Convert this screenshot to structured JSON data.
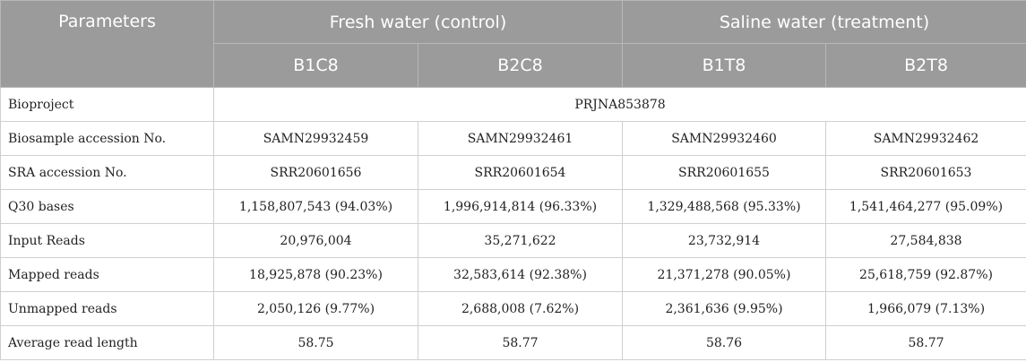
{
  "header": {
    "parameters": "Parameters",
    "group_fresh": "Fresh water (control)",
    "group_saline": "Saline water (treatment)",
    "samples": [
      "B1C8",
      "B2C8",
      "B1T8",
      "B2T8"
    ]
  },
  "bioproject": {
    "label": "Bioproject",
    "value": "PRJNA853878"
  },
  "rows": [
    {
      "label": "Biosample accession No.",
      "values": [
        "SAMN29932459",
        "SAMN29932461",
        "SAMN29932460",
        "SAMN29932462"
      ]
    },
    {
      "label": "SRA accession No.",
      "values": [
        "SRR20601656",
        "SRR20601654",
        "SRR20601655",
        "SRR20601653"
      ]
    },
    {
      "label": "Q30 bases",
      "values": [
        "1,158,807,543 (94.03%)",
        "1,996,914,814 (96.33%)",
        "1,329,488,568 (95.33%)",
        "1,541,464,277 (95.09%)"
      ]
    },
    {
      "label": "Input Reads",
      "values": [
        "20,976,004",
        "35,271,622",
        "23,732,914",
        "27,584,838"
      ]
    },
    {
      "label": "Mapped reads",
      "values": [
        "18,925,878 (90.23%)",
        "32,583,614 (92.38%)",
        "21,371,278 (90.05%)",
        "25,618,759 (92.87%)"
      ]
    },
    {
      "label": "Unmapped reads",
      "values": [
        "2,050,126 (9.77%)",
        "2,688,008 (7.62%)",
        "2,361,636 (9.95%)",
        "1,966,079 (7.13%)"
      ]
    },
    {
      "label": "Average read length",
      "values": [
        "58.75",
        "58.77",
        "58.76",
        "58.77"
      ]
    }
  ]
}
